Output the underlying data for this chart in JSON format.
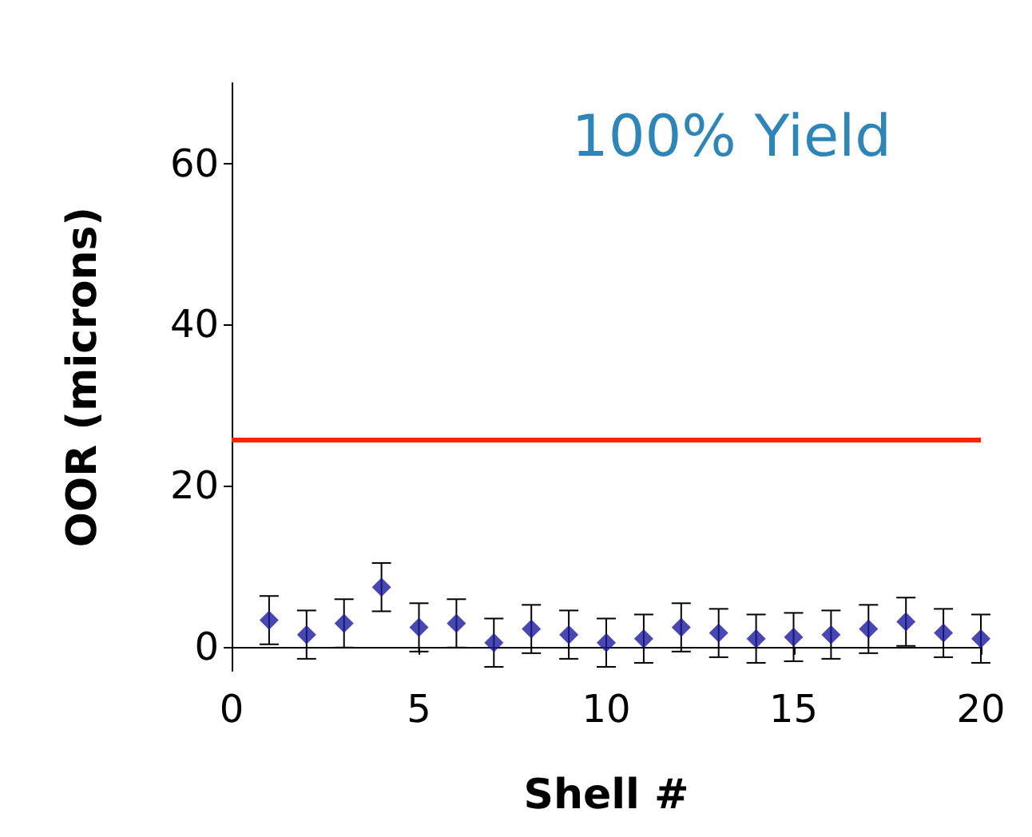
{
  "chart_data": {
    "type": "scatter",
    "xlabel": "Shell #",
    "ylabel": "OOR (microns)",
    "annotations": [
      "100% Yield"
    ],
    "x": [
      1,
      2,
      3,
      4,
      5,
      6,
      7,
      8,
      9,
      10,
      11,
      12,
      13,
      14,
      15,
      16,
      17,
      18,
      19,
      20
    ],
    "series": [
      {
        "color": "#1a1a9c",
        "values": [
          3.3,
          1.5,
          2.9,
          7.4,
          2.4,
          2.9,
          0.5,
          2.2,
          1.5,
          0.5,
          1.0,
          2.4,
          1.7,
          1.0,
          1.2,
          1.5,
          2.2,
          3.1,
          1.7,
          1.0
        ],
        "errors": [
          3,
          3,
          3,
          3,
          3,
          3,
          3,
          3,
          3,
          3,
          3,
          3,
          3,
          3,
          3,
          3,
          3,
          3,
          3,
          3
        ]
      }
    ],
    "xlim": [
      0,
      20
    ],
    "xticks": [
      0,
      5,
      10,
      15,
      20
    ],
    "ylim": [
      -3,
      70
    ],
    "yticks": [
      0,
      20,
      40,
      60
    ],
    "ref_lines": [
      {
        "axis": "y",
        "value": 25.8,
        "color": "#ff2200"
      }
    ],
    "marker": "diamond"
  }
}
